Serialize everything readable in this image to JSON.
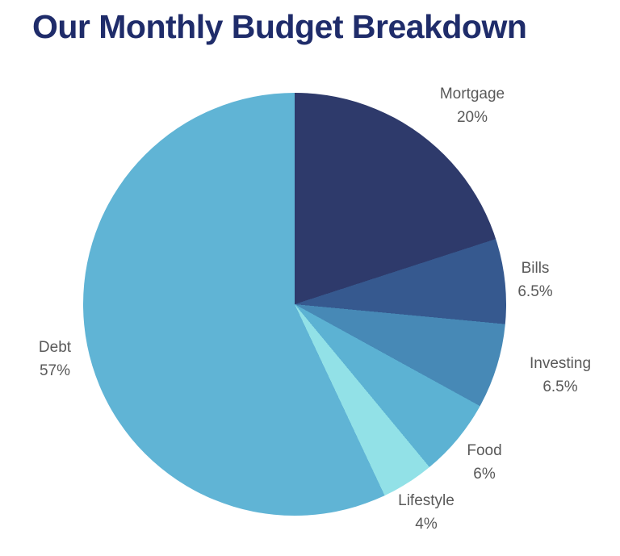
{
  "title": "Our Monthly Budget Breakdown",
  "chart_data": {
    "type": "pie",
    "title": "Our Monthly Budget Breakdown",
    "start_angle_deg": 0,
    "direction": "clockwise",
    "legend_position": "none",
    "title_color": "#1f2c6a",
    "label_color": "#595959",
    "slices": [
      {
        "label": "Mortgage",
        "value": 20,
        "pct_label": "20%",
        "color": "#2e3a6b"
      },
      {
        "label": "Bills",
        "value": 6.5,
        "pct_label": "6.5%",
        "color": "#36598f"
      },
      {
        "label": "Investing",
        "value": 6.5,
        "pct_label": "6.5%",
        "color": "#4789b6"
      },
      {
        "label": "Food",
        "value": 6,
        "pct_label": "6%",
        "color": "#5cb2d3"
      },
      {
        "label": "Lifestyle",
        "value": 4,
        "pct_label": "4%",
        "color": "#92e1e7"
      },
      {
        "label": "Debt",
        "value": 57,
        "pct_label": "57%",
        "color": "#60b4d5"
      }
    ]
  }
}
